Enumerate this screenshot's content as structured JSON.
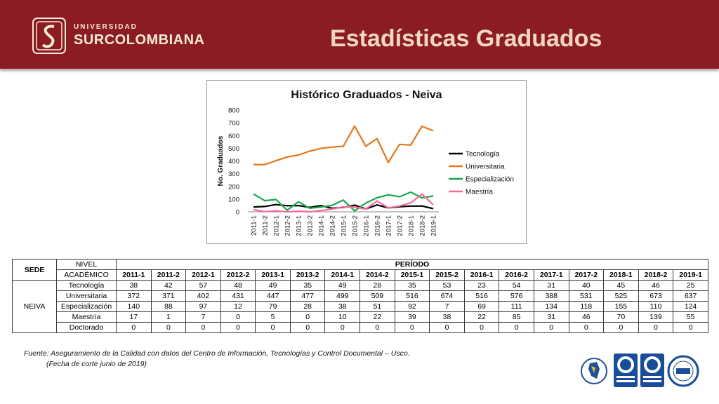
{
  "header": {
    "logo_small": "UNIVERSIDAD",
    "logo_big": "SURCOLOMBIANA",
    "title": "Estadísticas Graduados"
  },
  "colors": {
    "header_bg": "#8c1c24",
    "tecnologia": "#000000",
    "universitaria": "#e2761b",
    "especializacion": "#19a64b",
    "maestria": "#f36a9c"
  },
  "chart_data": {
    "type": "line",
    "title": "Histórico Graduados - Neiva",
    "ylabel": "No. Graduados",
    "xlabel": "",
    "ylim": [
      0,
      800
    ],
    "yticks": [
      0,
      100,
      200,
      300,
      400,
      500,
      600,
      700,
      800
    ],
    "legend_position": "right",
    "grid": false,
    "categories": [
      "2011-1",
      "2011-2",
      "2012-1",
      "2012-2",
      "2013-1",
      "2013-2",
      "2014-1",
      "2014-2",
      "2015-1",
      "2015-2",
      "2016-1",
      "2016-2",
      "2017-1",
      "2017-2",
      "2018-1",
      "2018-2",
      "2019-1"
    ],
    "series": [
      {
        "name": "Tecnología",
        "color": "#000000",
        "values": [
          38,
          42,
          57,
          48,
          49,
          35,
          49,
          28,
          35,
          53,
          23,
          54,
          31,
          40,
          45,
          46,
          25
        ]
      },
      {
        "name": "Universitaria",
        "color": "#e2761b",
        "values": [
          372,
          371,
          402,
          431,
          447,
          477,
          499,
          509,
          516,
          674,
          516,
          576,
          388,
          531,
          525,
          673,
          637
        ]
      },
      {
        "name": "Especialización",
        "color": "#19a64b",
        "values": [
          140,
          88,
          97,
          12,
          79,
          28,
          38,
          51,
          92,
          7,
          69,
          111,
          134,
          118,
          155,
          110,
          124
        ]
      },
      {
        "name": "Maestría",
        "color": "#f36a9c",
        "values": [
          17,
          1,
          7,
          0,
          5,
          0,
          10,
          22,
          39,
          38,
          22,
          85,
          31,
          46,
          70,
          139,
          55
        ]
      }
    ]
  },
  "table": {
    "h_sede": "SEDE",
    "h_nivel_1": "NIVEL",
    "h_nivel_2": "ACADÉMICO",
    "h_periodo": "PERÍODO",
    "periods": [
      "2011-1",
      "2011-2",
      "2012-1",
      "2012-2",
      "2013-1",
      "2013-2",
      "2014-1",
      "2014-2",
      "2015-1",
      "2015-2",
      "2016-1",
      "2016-2",
      "2017-1",
      "2017-2",
      "2018-1",
      "2018-2",
      "2019-1"
    ],
    "sede": "NEIVA",
    "rows": [
      {
        "nivel": "Tecnología",
        "values": [
          "38",
          "42",
          "57",
          "48",
          "49",
          "35",
          "49",
          "28",
          "35",
          "53",
          "23",
          "54",
          "31",
          "40",
          "45",
          "46",
          "25"
        ]
      },
      {
        "nivel": "Universitaria",
        "values": [
          "372",
          "371",
          "402",
          "431",
          "447",
          "477",
          "499",
          "509",
          "516",
          "674",
          "516",
          "576",
          "388",
          "531",
          "525",
          "673",
          "637"
        ]
      },
      {
        "nivel": "Especialización",
        "values": [
          "140",
          "88",
          "97",
          "12",
          "79",
          "28",
          "38",
          "51",
          "92",
          "7",
          "69",
          "111",
          "134",
          "118",
          "155",
          "110",
          "124"
        ]
      },
      {
        "nivel": "Maestría",
        "values": [
          "17",
          "1",
          "7",
          "0",
          "5",
          "0",
          "10",
          "22",
          "39",
          "38",
          "22",
          "85",
          "31",
          "46",
          "70",
          "139",
          "55"
        ]
      },
      {
        "nivel": "Doctorado",
        "values": [
          "0",
          "0",
          "0",
          "0",
          "0",
          "0",
          "0",
          "0",
          "0",
          "0",
          "0",
          "0",
          "0",
          "0",
          "0",
          "0",
          "0"
        ]
      }
    ]
  },
  "footer": {
    "source_line1": "Fuente: Aseguramiento de la Calidad con datos del Centro de Información, Tecnologías y Control Documental – Usco.",
    "source_line2": "(Fecha de corte junio de 2019)"
  },
  "badges": [
    "icontec-iso-9001-badge",
    "icontec-iso-9001-badge",
    "iqnet-badge",
    "certification-seal"
  ]
}
